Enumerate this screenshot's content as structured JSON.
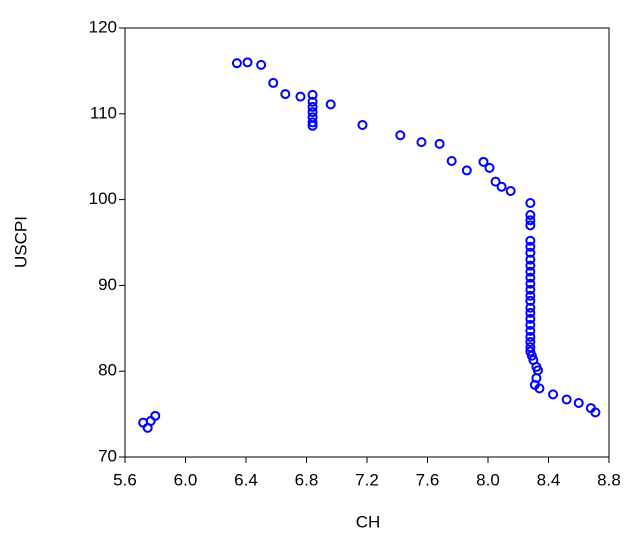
{
  "chart_data": {
    "type": "scatter",
    "x_label": "CH",
    "y_label": "USCPI",
    "xlim": [
      5.6,
      8.8
    ],
    "xticks": [
      5.6,
      {
        "value": 6,
        "label": "6.0"
      },
      6.4,
      6.8,
      7.2,
      7.6,
      {
        "value": 8,
        "label": "8.0"
      },
      8.4,
      8.8
    ],
    "ylim": [
      70,
      120
    ],
    "yticks": [
      70,
      80,
      90,
      100,
      110,
      120
    ],
    "color": "#0000ff",
    "x": [
      6.34,
      6.41,
      6.5,
      6.58,
      6.66,
      6.76,
      6.84,
      6.84,
      6.84,
      6.84,
      6.84,
      6.84,
      6.84,
      6.96,
      7.17,
      7.42,
      7.56,
      7.68,
      7.76,
      7.86,
      7.97,
      8.01,
      8.05,
      8.09,
      8.15,
      8.28,
      8.28,
      8.28,
      8.28,
      8.28,
      8.28,
      8.28,
      8.28,
      8.28,
      8.28,
      8.28,
      8.28,
      8.28,
      8.28,
      8.28,
      8.28,
      8.28,
      8.28,
      8.28,
      8.28,
      8.28,
      8.28,
      8.28,
      8.28,
      8.29,
      8.3,
      8.32,
      8.33,
      8.32,
      8.31,
      8.34,
      8.43,
      8.52,
      8.6,
      8.68,
      8.71,
      5.72,
      5.75,
      5.77,
      5.8
    ],
    "y": [
      115.9,
      116.0,
      115.7,
      113.6,
      112.3,
      112.0,
      112.2,
      111.4,
      110.8,
      110.2,
      109.6,
      109.0,
      108.6,
      111.1,
      108.7,
      107.5,
      106.7,
      106.5,
      104.5,
      103.4,
      104.4,
      103.7,
      102.1,
      101.5,
      101.0,
      99.6,
      98.2,
      97.6,
      97.0,
      95.2,
      94.5,
      93.8,
      93.0,
      92.3,
      91.6,
      90.9,
      90.2,
      89.5,
      88.8,
      88.2,
      87.4,
      86.8,
      86.1,
      85.4,
      84.7,
      84.0,
      83.4,
      82.8,
      82.3,
      81.8,
      81.3,
      80.5,
      80.1,
      79.2,
      78.4,
      78.0,
      77.3,
      76.7,
      76.3,
      75.7,
      75.2,
      74.0,
      73.4,
      74.2,
      74.8
    ]
  }
}
